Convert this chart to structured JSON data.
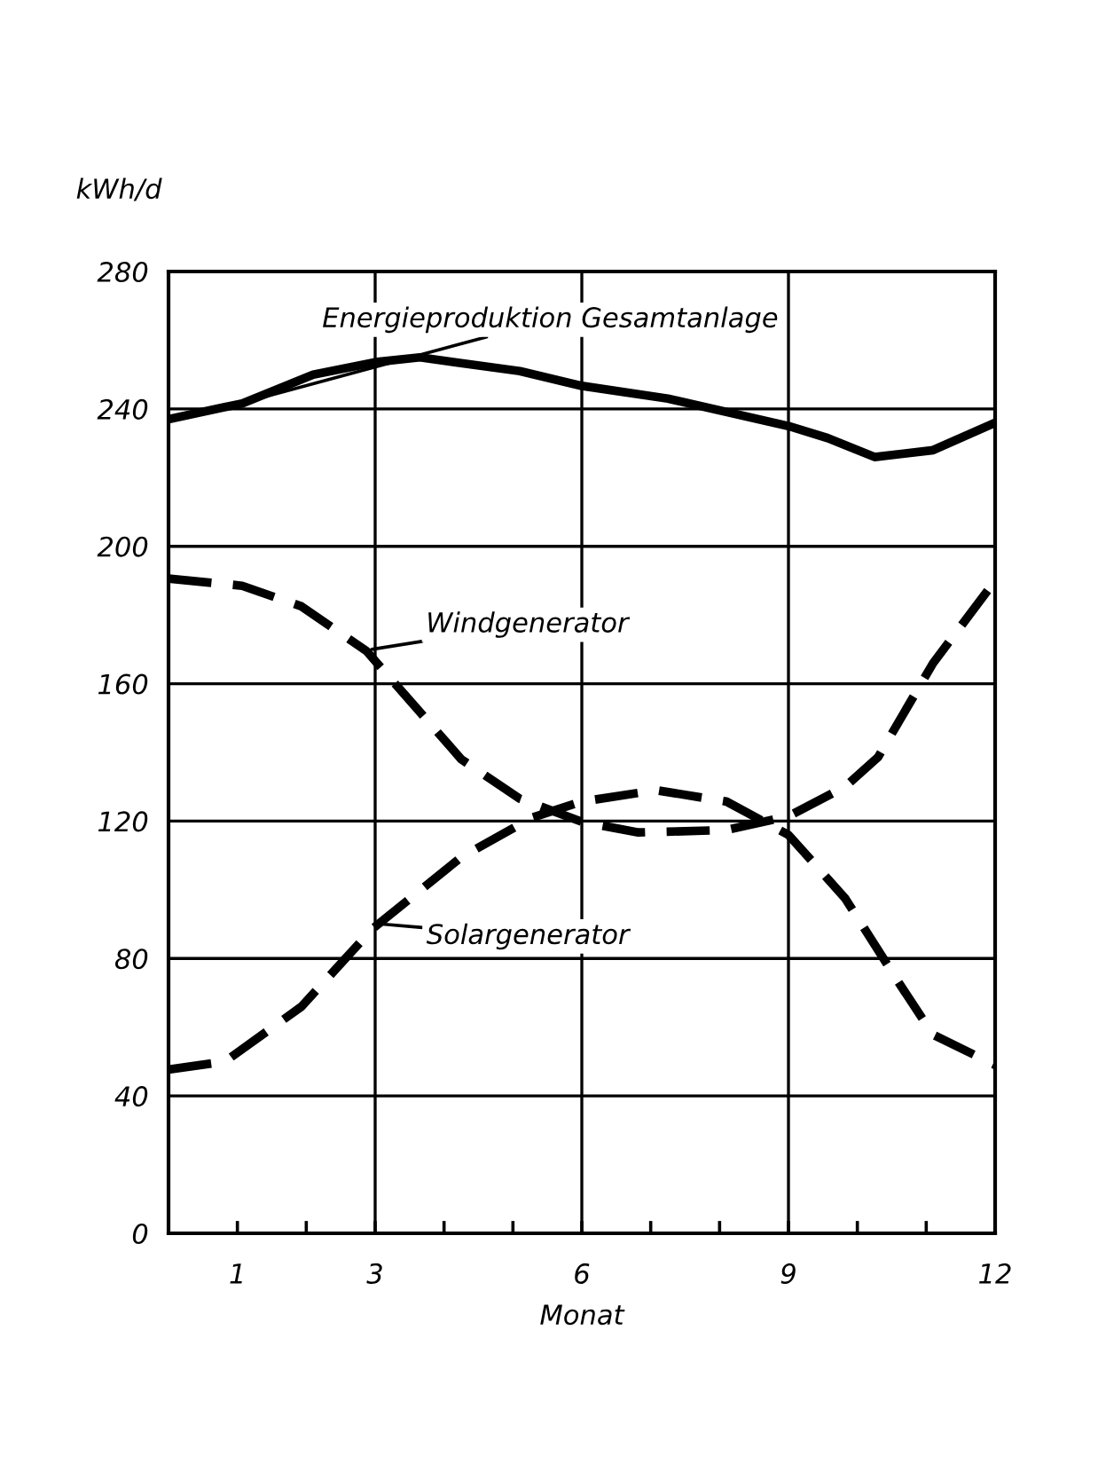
{
  "chart_data": {
    "type": "line",
    "xlabel": "Monat",
    "ylabel": "kWh/d",
    "xlim": [
      0,
      12
    ],
    "ylim": [
      0,
      280
    ],
    "xticks": [
      1,
      {
        "value": 2,
        "label": null
      },
      3,
      {
        "value": 4,
        "label": null
      },
      {
        "value": 5,
        "label": null
      },
      6,
      {
        "value": 7,
        "label": null
      },
      {
        "value": 8,
        "label": null
      },
      9,
      {
        "value": 10,
        "label": null
      },
      {
        "value": 11,
        "label": null
      },
      12
    ],
    "yticks": [
      0,
      40,
      80,
      120,
      160,
      200,
      240,
      280
    ],
    "grid": "y",
    "marker": "none",
    "ref_lines": [
      {
        "axis": "x",
        "value": 3,
        "label": null
      },
      {
        "axis": "x",
        "value": 6,
        "label": null
      },
      {
        "axis": "x",
        "value": 9,
        "label": null
      }
    ],
    "series": [
      {
        "color": "#000000",
        "line_style": "solid",
        "x": [
          0,
          1.07,
          2.1,
          3.0,
          3.65,
          5.1,
          6.0,
          7.25,
          9.0,
          9.57,
          10.25,
          11.1,
          12
        ],
        "values": [
          237,
          241.6,
          250,
          253.6,
          255,
          251,
          246.7,
          243,
          235,
          231.5,
          226,
          228,
          236
        ]
      },
      {
        "color": "#000000",
        "line_style": "dashed",
        "x": [
          0,
          1.07,
          1.93,
          2.87,
          4.25,
          5.1,
          6.0,
          6.82,
          8.1,
          9.0,
          9.82,
          10.3,
          11.1,
          12
        ],
        "values": [
          190.6,
          188.5,
          182.5,
          169.6,
          138,
          126.5,
          119.8,
          116.7,
          117.4,
          121.4,
          130,
          138.6,
          166,
          190
        ]
      },
      {
        "color": "#000000",
        "line_style": "dashed",
        "x": [
          0,
          0.82,
          1.93,
          2.96,
          4.25,
          5.28,
          6.0,
          7.08,
          8.1,
          9.0,
          9.82,
          10.6,
          11.1,
          12
        ],
        "values": [
          47.7,
          50,
          66,
          88.6,
          109.5,
          121,
          125.7,
          129,
          125.7,
          116,
          97.6,
          73,
          57.8,
          49
        ]
      }
    ],
    "annotations": [
      {
        "text": "Energieproduktion Gesamtanlage",
        "x": 1.3,
        "y": 243
      },
      {
        "text": "Windgenerator",
        "x": 2.95,
        "y": 170
      },
      {
        "text": "Solargenerator",
        "x": 3.1,
        "y": 90
      }
    ]
  }
}
